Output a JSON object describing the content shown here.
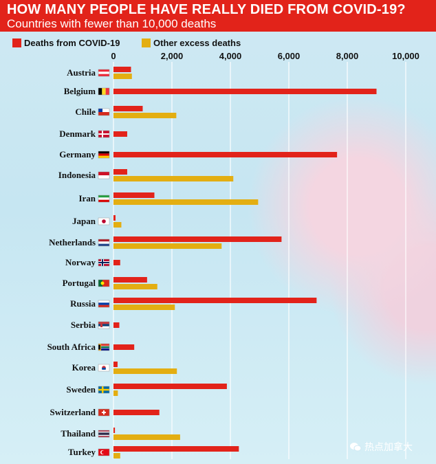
{
  "title": "HOW MANY PEOPLE HAVE REALLY DIED FROM COVID-19?",
  "subtitle": "Countries with fewer than 10,000 deaths",
  "watermark": "热点加拿大",
  "colors": {
    "covid": "#e2231a",
    "excess": "#e3ae12",
    "header": "#e2231a"
  },
  "chart_data": {
    "type": "bar",
    "orientation": "horizontal",
    "xlim": [
      0,
      10000
    ],
    "ticks": [
      "0",
      "2,000",
      "4,000",
      "6,000",
      "8,000",
      "10,000"
    ],
    "tick_values": [
      0,
      2000,
      4000,
      6000,
      8000,
      10000
    ],
    "categories": [
      "Austria",
      "Belgium",
      "Chile",
      "Denmark",
      "Germany",
      "Indonesia",
      "Iran",
      "Japan",
      "Netherlands",
      "Norway",
      "Portugal",
      "Russia",
      "Serbia",
      "South Africa",
      "Korea",
      "Sweden",
      "Switzerland",
      "Thailand",
      "Turkey"
    ],
    "flags": [
      "flag-austria",
      "flag-belgium",
      "flag-chile",
      "flag-denmark",
      "flag-germany",
      "flag-indonesia",
      "flag-iran",
      "flag-japan",
      "flag-netherlands",
      "flag-norway",
      "flag-portugal",
      "flag-russia",
      "flag-serbia",
      "flag-south-africa",
      "flag-korea",
      "flag-sweden",
      "flag-switzerland",
      "flag-thailand",
      "flag-turkey"
    ],
    "series": [
      {
        "name": "Deaths from COVID-19",
        "color": "#e2231a",
        "values": [
          600,
          9000,
          1000,
          470,
          7650,
          470,
          1400,
          70,
          5750,
          230,
          1150,
          6950,
          200,
          710,
          140,
          3880,
          1570,
          50,
          4290
        ]
      },
      {
        "name": "Other excess deaths",
        "color": "#e3ae12",
        "values": [
          630,
          null,
          2150,
          null,
          null,
          4100,
          4950,
          270,
          3700,
          null,
          1500,
          2100,
          null,
          null,
          2170,
          150,
          null,
          2280,
          230
        ]
      }
    ]
  }
}
